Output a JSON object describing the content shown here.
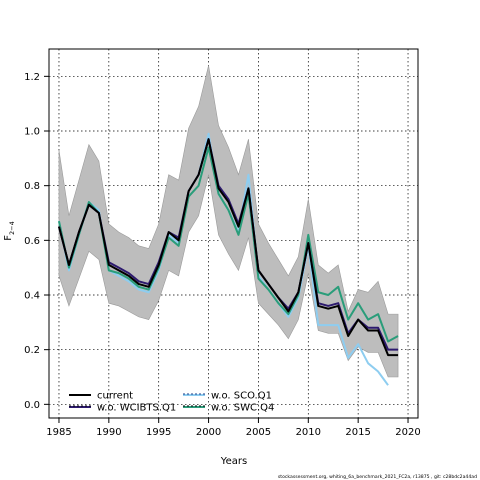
{
  "chart_data": {
    "type": "line",
    "xlabel": "Years",
    "ylabel": "F",
    "ylabel_sub": "2−4",
    "xlim": [
      1984,
      2021
    ],
    "ylim": [
      -0.05,
      1.3
    ],
    "xticks": [
      1985,
      1990,
      1995,
      2000,
      2005,
      2010,
      2015,
      2020
    ],
    "yticks": [
      0.0,
      0.2,
      0.4,
      0.6,
      0.8,
      1.0,
      1.2
    ],
    "grid": true,
    "legend_position": "bottom-left",
    "credit": "stockassessment.org,  whiting_6a_benchmark_2021_FC2a, r13875 ,  git:  c28bdc2a44ad",
    "x": [
      1985,
      1986,
      1987,
      1988,
      1989,
      1990,
      1991,
      1992,
      1993,
      1994,
      1995,
      1996,
      1997,
      1998,
      1999,
      2000,
      2001,
      2002,
      2003,
      2004,
      2005,
      2006,
      2007,
      2008,
      2009,
      2010,
      2011,
      2012,
      2013,
      2014,
      2015,
      2016,
      2017,
      2018,
      2019
    ],
    "band": {
      "upper": [
        0.93,
        0.69,
        0.82,
        0.95,
        0.89,
        0.66,
        0.63,
        0.61,
        0.58,
        0.57,
        0.66,
        0.84,
        0.82,
        1.01,
        1.09,
        1.24,
        1.02,
        0.94,
        0.84,
        0.97,
        0.66,
        0.59,
        0.53,
        0.47,
        0.54,
        0.75,
        0.51,
        0.48,
        0.51,
        0.34,
        0.42,
        0.41,
        0.45,
        0.33,
        0.33
      ],
      "lower": [
        0.47,
        0.36,
        0.46,
        0.56,
        0.53,
        0.37,
        0.36,
        0.34,
        0.32,
        0.31,
        0.38,
        0.49,
        0.47,
        0.63,
        0.69,
        0.84,
        0.62,
        0.55,
        0.49,
        0.61,
        0.37,
        0.33,
        0.29,
        0.24,
        0.31,
        0.48,
        0.27,
        0.26,
        0.26,
        0.16,
        0.21,
        0.19,
        0.19,
        0.1,
        0.1
      ]
    },
    "series": [
      {
        "name": "current",
        "color": "#000000",
        "dash": "",
        "values": [
          0.65,
          0.51,
          0.63,
          0.73,
          0.7,
          0.51,
          0.49,
          0.47,
          0.44,
          0.43,
          0.51,
          0.63,
          0.6,
          0.78,
          0.84,
          0.97,
          0.79,
          0.74,
          0.65,
          0.79,
          0.49,
          0.44,
          0.39,
          0.34,
          0.41,
          0.59,
          0.36,
          0.35,
          0.36,
          0.25,
          0.31,
          0.27,
          0.27,
          0.18,
          0.18
        ]
      },
      {
        "name": "w.o. WCIBTS.Q1",
        "color": "#2d1a6e",
        "dash": "",
        "values": [
          0.65,
          0.51,
          0.63,
          0.73,
          0.7,
          0.52,
          0.5,
          0.48,
          0.45,
          0.44,
          0.52,
          0.63,
          0.61,
          0.78,
          0.84,
          0.97,
          0.8,
          0.75,
          0.66,
          0.79,
          0.49,
          0.44,
          0.39,
          0.35,
          0.41,
          0.59,
          0.37,
          0.36,
          0.37,
          0.26,
          0.31,
          0.28,
          0.28,
          0.2,
          0.2
        ]
      },
      {
        "name": "w.o. SCO.Q1",
        "color": "#8ecdf0",
        "dash": "",
        "values": [
          0.67,
          0.49,
          0.62,
          0.74,
          0.71,
          0.49,
          0.47,
          0.45,
          0.42,
          0.41,
          0.49,
          0.62,
          0.59,
          0.78,
          0.84,
          0.99,
          0.77,
          0.71,
          0.63,
          0.84,
          0.47,
          0.42,
          0.37,
          0.32,
          0.39,
          0.58,
          0.29,
          0.29,
          0.29,
          0.17,
          0.22,
          0.15,
          0.12,
          0.07,
          null
        ]
      },
      {
        "name": "w.o. SWC.Q4",
        "color": "#2a9d7a",
        "dash": "",
        "values": [
          0.67,
          0.5,
          0.62,
          0.74,
          0.7,
          0.49,
          0.48,
          0.46,
          0.43,
          0.42,
          0.5,
          0.61,
          0.58,
          0.76,
          0.8,
          0.94,
          0.77,
          0.71,
          0.62,
          0.77,
          0.46,
          0.42,
          0.37,
          0.33,
          0.4,
          0.62,
          0.41,
          0.4,
          0.43,
          0.31,
          0.37,
          0.31,
          0.33,
          0.23,
          0.25
        ]
      }
    ]
  }
}
